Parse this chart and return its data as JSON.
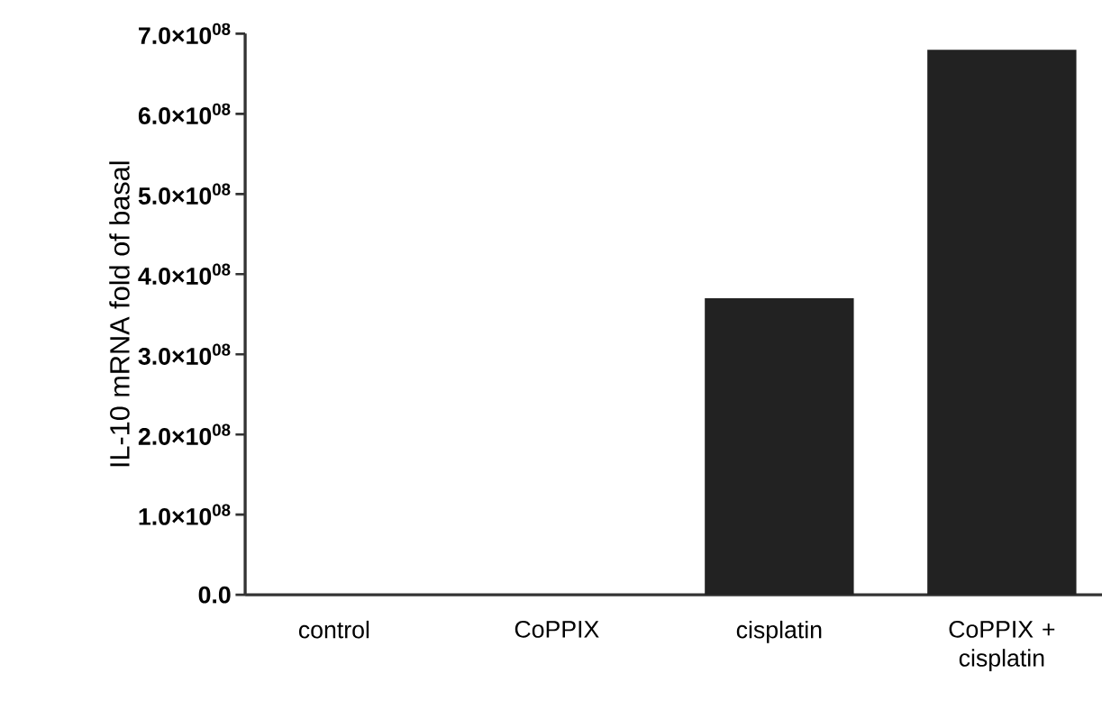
{
  "chart_data": {
    "type": "bar",
    "ylabel": "IL-10 mRNA fold of basal",
    "categories": [
      "control",
      "CoPPIX",
      "cisplatin",
      "CoPPIX + cisplatin"
    ],
    "values": [
      0,
      0,
      370000000,
      680000000
    ],
    "color": "#222222",
    "ylim": [
      0,
      700000000
    ],
    "yticks": [
      {
        "value": 0,
        "label": "0.0"
      },
      {
        "value": 100000000,
        "label": "1.0×10$^{08}$"
      },
      {
        "value": 200000000,
        "label": "2.0×10$^{08}$"
      },
      {
        "value": 300000000,
        "label": "3.0×10$^{08}$"
      },
      {
        "value": 400000000,
        "label": "4.0×10$^{08}$"
      },
      {
        "value": 500000000,
        "label": "5.0×10$^{08}$"
      },
      {
        "value": 600000000,
        "label": "6.0×10$^{08}$"
      },
      {
        "value": 700000000,
        "label": "7.0×10$^{08}$"
      }
    ]
  }
}
